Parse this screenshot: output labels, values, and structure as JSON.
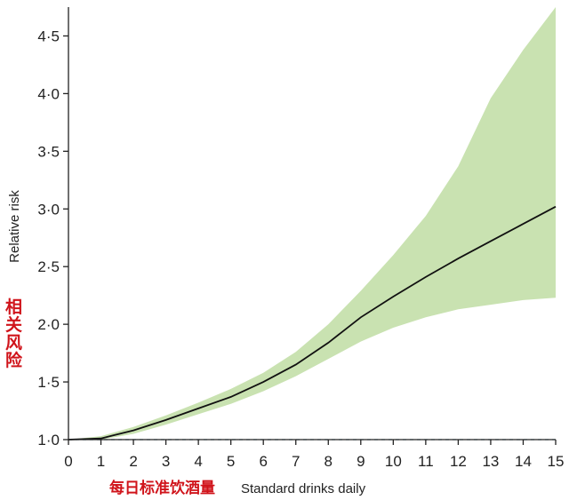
{
  "chart_data": {
    "type": "line",
    "title": "",
    "xlabel": "Standard drinks daily",
    "xlabel_cn": "每日标准饮酒量",
    "ylabel": "Relative risk",
    "ylabel_cn": "相关风险",
    "xlim": [
      0,
      15
    ],
    "ylim": [
      1.0,
      4.75
    ],
    "x_ticks": [
      0,
      1,
      2,
      3,
      4,
      5,
      6,
      7,
      8,
      9,
      10,
      11,
      12,
      13,
      14,
      15
    ],
    "x_tick_labels": [
      "0",
      "1",
      "2",
      "3",
      "4",
      "5",
      "6",
      "7",
      "8",
      "9",
      "10",
      "11",
      "12",
      "13",
      "14",
      "15"
    ],
    "y_ticks": [
      1.0,
      1.5,
      2.0,
      2.5,
      3.0,
      3.5,
      4.0,
      4.5
    ],
    "y_tick_labels": [
      "1·0",
      "1·5",
      "2·0",
      "2·5",
      "3·0",
      "3·5",
      "4·0",
      "4·5"
    ],
    "reference_line": {
      "y": 1.0,
      "style": "dashed",
      "color": "#4a7a8c"
    },
    "grid": false,
    "legend": "none",
    "series": [
      {
        "x": [
          0,
          1,
          2,
          3,
          4,
          5,
          6,
          7,
          8,
          9,
          10,
          11,
          12,
          13,
          14,
          15
        ],
        "y": [
          1.0,
          1.01,
          1.08,
          1.17,
          1.27,
          1.37,
          1.5,
          1.65,
          1.84,
          2.06,
          2.24,
          2.41,
          2.57,
          2.72,
          2.87,
          3.02
        ],
        "lower": [
          1.0,
          1.0,
          1.05,
          1.13,
          1.22,
          1.31,
          1.42,
          1.55,
          1.7,
          1.85,
          1.97,
          2.06,
          2.13,
          2.17,
          2.21,
          2.23
        ],
        "upper": [
          1.0,
          1.03,
          1.11,
          1.21,
          1.32,
          1.44,
          1.58,
          1.76,
          2.0,
          2.29,
          2.6,
          2.94,
          3.37,
          3.96,
          4.38,
          4.75
        ],
        "color": "#111111",
        "band_color": "#c9e2b1"
      }
    ]
  }
}
